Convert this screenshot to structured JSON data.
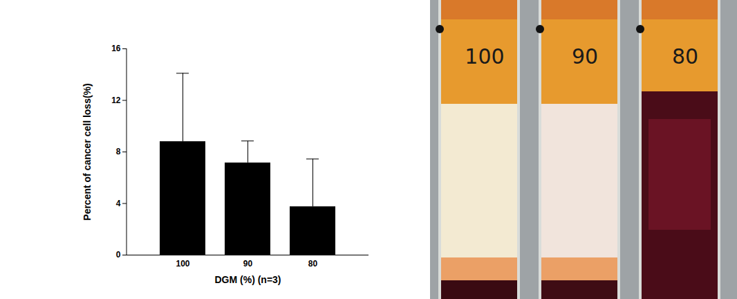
{
  "chart_data": {
    "type": "bar",
    "x_label": "DGM (%) (n=3)",
    "y_label": "Percent of cancer cell loss(%)",
    "categories": [
      "100",
      "90",
      "80"
    ],
    "values": [
      8.8,
      7.15,
      3.75
    ],
    "error": [
      5.3,
      1.7,
      3.7
    ],
    "color": "#000000",
    "ylim": [
      0,
      16
    ],
    "yticks": [
      0,
      4,
      8,
      12,
      16
    ],
    "grid": false
  },
  "image": {
    "type": "photo",
    "tube_labels": [
      "100",
      "90",
      "80"
    ]
  }
}
